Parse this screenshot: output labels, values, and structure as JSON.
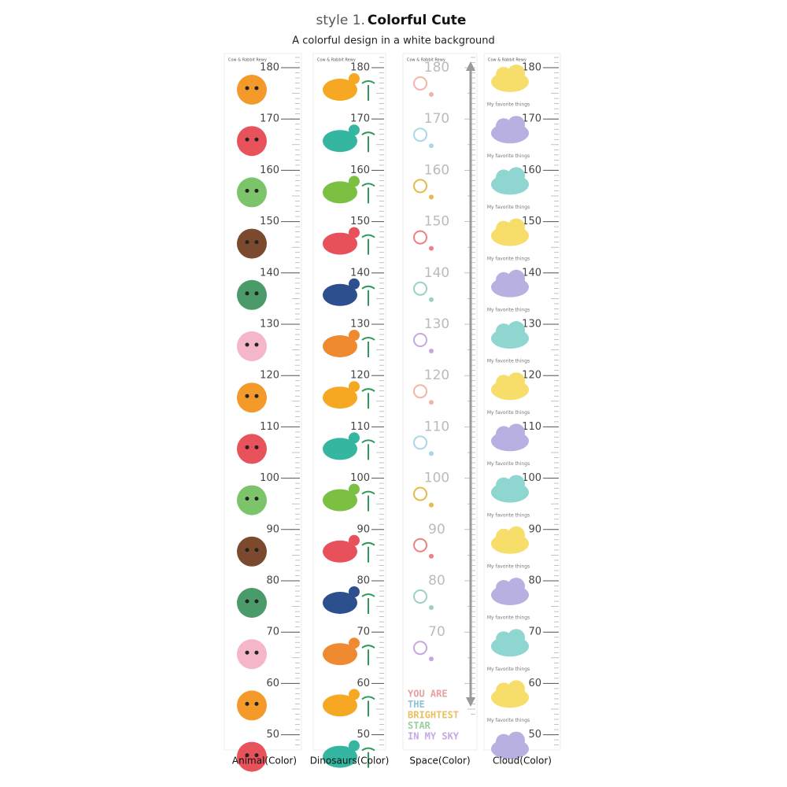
{
  "header": {
    "prefix": "style 1.",
    "title": "Colorful Cute",
    "subtitle": "A colorful design in a white background"
  },
  "panels": [
    {
      "label": "Animal(Color)",
      "brand": "Cow & Rabbit Rewy",
      "numbers": [
        "180",
        "170",
        "160",
        "150",
        "140",
        "130",
        "120",
        "110",
        "100",
        "90",
        "80",
        "70",
        "60",
        "50"
      ]
    },
    {
      "label": "Dinosaurs(Color)",
      "brand": "Cow & Rabbit Rewy",
      "numbers": [
        "180",
        "170",
        "160",
        "150",
        "140",
        "130",
        "120",
        "110",
        "100",
        "90",
        "80",
        "70",
        "60",
        "50"
      ]
    },
    {
      "label": "Space(Color)",
      "brand": "Cow & Rabbit Rewy",
      "numbers": [
        "180",
        "170",
        "160",
        "150",
        "140",
        "130",
        "120",
        "110",
        "100",
        "90",
        "80",
        "70"
      ],
      "quote": [
        "YOU ARE",
        "THE",
        "BRIGHTEST",
        "STAR",
        "IN MY SKY"
      ]
    },
    {
      "label": "Cloud(Color)",
      "brand": "Cow & Rabbit Rewy",
      "numbers": [
        "180",
        "170",
        "160",
        "150",
        "140",
        "130",
        "120",
        "110",
        "100",
        "90",
        "80",
        "70",
        "60",
        "50"
      ],
      "note": "My favorite things"
    }
  ]
}
